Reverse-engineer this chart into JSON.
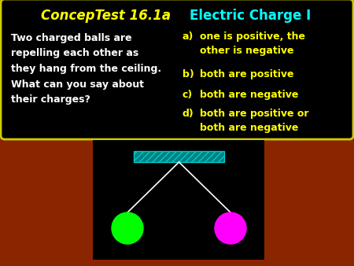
{
  "background_color": "#8B2500",
  "title_italic": "ConcepTest 16.1a",
  "title_normal": "Electric Charge I",
  "title_color_italic": "#FFFF00",
  "title_color_normal": "#00FFFF",
  "question_text": "Two charged balls are\nrepelling each other as\nthey hang from the ceiling.\nWhat can you say about\ntheir charges?",
  "question_color": "#FFFFFF",
  "answers": [
    {
      "label": "a)",
      "text": "one is positive, the\nother is negative"
    },
    {
      "label": "b)",
      "text": "both are positive"
    },
    {
      "label": "c)",
      "text": "both are negative"
    },
    {
      "label": "d)",
      "text": "both are positive or\nboth are negative"
    }
  ],
  "answer_color": "#FFFF00",
  "top_box_bg": "#000000",
  "top_box_border": "#CCCC00",
  "bottom_box_bg": "#000000",
  "ball_left_color": "#00FF00",
  "ball_right_color": "#FF00FF",
  "string_color": "#FFFFFF",
  "ceiling_facecolor": "#008080",
  "ceiling_edgecolor": "#00CCCC",
  "ceiling_hatch": "////",
  "fig_width": 4.5,
  "fig_height": 3.38,
  "dpi": 100
}
